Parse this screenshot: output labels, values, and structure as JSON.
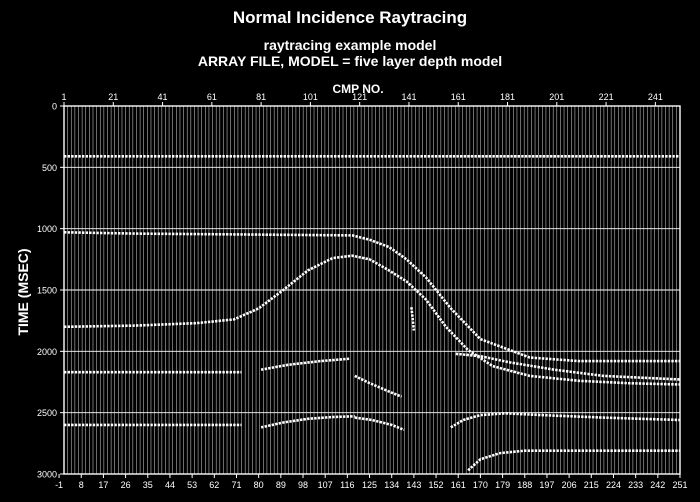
{
  "chart_data": {
    "type": "line",
    "title": "Normal Incidence Raytracing",
    "subtitle_1": "raytracing example model",
    "subtitle_2": "ARRAY FILE, MODEL = five layer depth model",
    "top_axis_label": "CMP NO.",
    "top_ticks": [
      "1",
      "21",
      "41",
      "61",
      "81",
      "101",
      "121",
      "141",
      "161",
      "181",
      "201",
      "221",
      "241"
    ],
    "bottom_ticks": [
      "-1",
      "8",
      "17",
      "26",
      "35",
      "44",
      "53",
      "62",
      "71",
      "80",
      "89",
      "98",
      "107",
      "116",
      "125",
      "134",
      "143",
      "152",
      "161",
      "170",
      "179",
      "188",
      "197",
      "206",
      "215",
      "224",
      "233",
      "242",
      "251"
    ],
    "ylabel": "TIME (MSEC)",
    "y_ticks": [
      "0",
      "500",
      "1000",
      "1500",
      "2000",
      "2500",
      "3000"
    ],
    "xlim": [
      1,
      251
    ],
    "ylim": [
      0,
      3000
    ],
    "y_inverted": true,
    "grid": true,
    "colors": {
      "background": "#000000",
      "trace": "#ffffff"
    },
    "series": [
      {
        "x": [
          1,
          251
        ],
        "y": [
          410,
          410
        ]
      },
      {
        "x": [
          1,
          30,
          60,
          90,
          118,
          125,
          133,
          140,
          148,
          158,
          170,
          190,
          210,
          251
        ],
        "y": [
          1030,
          1040,
          1045,
          1050,
          1055,
          1090,
          1150,
          1250,
          1400,
          1650,
          1900,
          2050,
          2080,
          2080
        ]
      },
      {
        "x": [
          1,
          30,
          55,
          70,
          80,
          90,
          100,
          110,
          118,
          125,
          132,
          140,
          148,
          156,
          165,
          175,
          190,
          210,
          230,
          251
        ],
        "y": [
          1800,
          1790,
          1770,
          1740,
          1650,
          1500,
          1340,
          1240,
          1220,
          1250,
          1330,
          1430,
          1580,
          1800,
          1990,
          2120,
          2200,
          2240,
          2260,
          2270
        ]
      },
      {
        "x": [
          1,
          73
        ],
        "y": [
          2170,
          2170
        ]
      },
      {
        "x": [
          81,
          92,
          105,
          117
        ],
        "y": [
          2150,
          2110,
          2080,
          2060
        ]
      },
      {
        "x": [
          119,
          124,
          132,
          138
        ],
        "y": [
          2200,
          2250,
          2320,
          2370
        ]
      },
      {
        "x": [
          160,
          170,
          182,
          200,
          220,
          251
        ],
        "y": [
          2020,
          2040,
          2090,
          2150,
          2200,
          2230
        ]
      },
      {
        "x": [
          1,
          73
        ],
        "y": [
          2600,
          2600
        ]
      },
      {
        "x": [
          81,
          90,
          100,
          110,
          119
        ],
        "y": [
          2620,
          2580,
          2550,
          2535,
          2530
        ]
      },
      {
        "x": [
          119,
          126,
          134,
          139
        ],
        "y": [
          2540,
          2560,
          2600,
          2640
        ]
      },
      {
        "x": [
          158,
          163,
          170,
          180,
          195,
          220,
          251
        ],
        "y": [
          2620,
          2560,
          2520,
          2505,
          2520,
          2540,
          2560
        ]
      },
      {
        "x": [
          165,
          170,
          178,
          188,
          210,
          251
        ],
        "y": [
          2970,
          2880,
          2830,
          2810,
          2810,
          2810
        ]
      },
      {
        "x": [
          142,
          143
        ],
        "y": [
          1640,
          1830
        ]
      }
    ]
  }
}
